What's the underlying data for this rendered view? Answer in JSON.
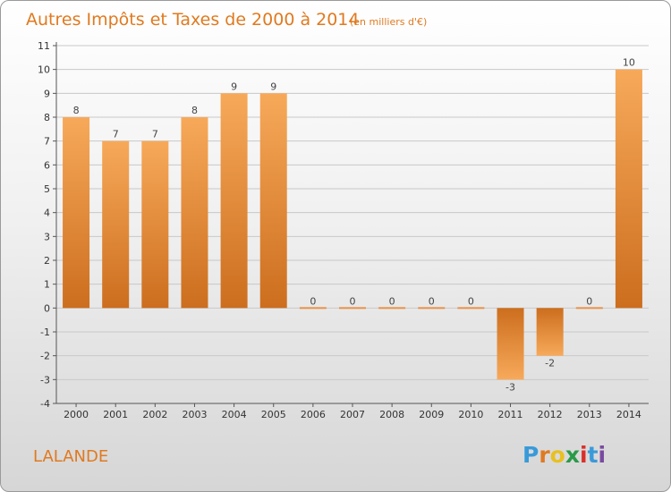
{
  "chart_data": {
    "type": "bar",
    "title": "Autres Impôts et Taxes de 2000 à 2014",
    "unit": "(en milliers d'€)",
    "categories": [
      "2000",
      "2001",
      "2002",
      "2003",
      "2004",
      "2005",
      "2006",
      "2007",
      "2008",
      "2009",
      "2010",
      "2011",
      "2012",
      "2013",
      "2014"
    ],
    "values": [
      8,
      7,
      7,
      8,
      9,
      9,
      0,
      0,
      0,
      0,
      0,
      -3,
      -2,
      0,
      10
    ],
    "data_labels": [
      "8",
      "7",
      "7",
      "8",
      "9",
      "9",
      "0",
      "0",
      "0",
      "0",
      "0",
      "-3",
      "-2",
      "0",
      "10"
    ],
    "ylim": [
      -4,
      11
    ],
    "yticks": [
      11,
      10,
      9,
      8,
      7,
      6,
      5,
      4,
      3,
      2,
      1,
      0,
      -1,
      -2,
      -3,
      -4
    ],
    "ytick_labels": [
      "11",
      "10",
      "9",
      "8",
      "7",
      "6",
      "5",
      "4",
      "3",
      "2",
      "1",
      "0",
      "-1",
      "-2",
      "-3",
      "-4"
    ],
    "grid": true,
    "colors": {
      "bar_light": "#f7a95a",
      "bar_dark": "#cc6e1e",
      "title": "#e07a20",
      "grid": "#c8c8c8"
    }
  },
  "location": "LALANDE",
  "logo": {
    "letters": [
      "P",
      "r",
      "o",
      "x",
      "i",
      "t",
      "i"
    ],
    "colors": [
      "#3a9ad9",
      "#e07a20",
      "#e8c020",
      "#2a9a48",
      "#d9302a",
      "#3a9ad9",
      "#7a4aa0"
    ]
  }
}
